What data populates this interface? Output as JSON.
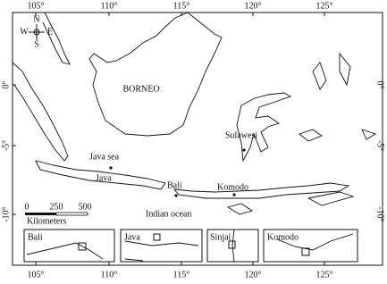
{
  "map": {
    "top_ticks": [
      "105°",
      "110°",
      "115°",
      "120°",
      "125°"
    ],
    "bottom_ticks": [
      "105°",
      "110°",
      "115°",
      "120°",
      "125°"
    ],
    "left_ticks": [
      "0°",
      "-5°",
      "-10°"
    ],
    "right_ticks": [
      "0°",
      "-5°",
      "-10°"
    ],
    "compass": {
      "n": "N",
      "w": "W",
      "e": "E",
      "s": "S"
    },
    "labels": {
      "borneo": "BORNEO",
      "sulawesi": "Sulawesi",
      "java_sea": "Java sea",
      "java": "Java",
      "bali": "Bali",
      "komodo": "Komodo",
      "indian_ocean": "Indian ocean"
    },
    "scale": {
      "ticks": [
        "0",
        "250",
        "500"
      ],
      "unit": "Kilometers"
    },
    "insets": [
      "Bali",
      "Java",
      "Sinjai",
      "Komodo"
    ]
  }
}
